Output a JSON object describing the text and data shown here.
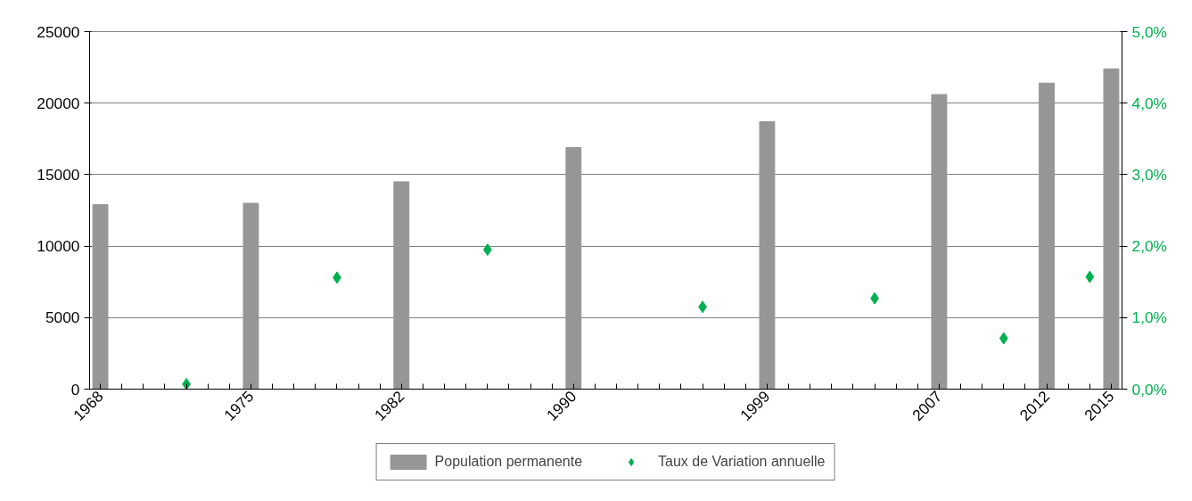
{
  "chart_data": {
    "type": "bar",
    "x": [
      1968,
      1975,
      1982,
      1990,
      1999,
      2007,
      2012,
      2015
    ],
    "series": [
      {
        "name": "Population permanente",
        "color": "#969696",
        "values": [
          12900,
          13000,
          14500,
          16900,
          18700,
          20600,
          21400,
          22400
        ]
      },
      {
        "name": "Taux de Variation annuelle",
        "type": "scatter",
        "axis": "y2",
        "color": "#00b050",
        "marker": "diamond",
        "x": [
          1972,
          1979,
          1986,
          1996,
          2004,
          2010,
          2014
        ],
        "values": [
          0.07,
          1.56,
          1.95,
          1.15,
          1.27,
          0.71,
          1.57
        ]
      }
    ],
    "xlim": [
      1967.5,
      2015.5
    ],
    "xticks": [
      1968,
      {
        "value": 1969,
        "label": null
      },
      {
        "value": 1970,
        "label": null
      },
      {
        "value": 1971,
        "label": null
      },
      {
        "value": 1972,
        "label": null
      },
      {
        "value": 1973,
        "label": null
      },
      {
        "value": 1974,
        "label": null
      },
      1975,
      {
        "value": 1976,
        "label": null
      },
      {
        "value": 1977,
        "label": null
      },
      {
        "value": 1978,
        "label": null
      },
      {
        "value": 1979,
        "label": null
      },
      {
        "value": 1980,
        "label": null
      },
      {
        "value": 1981,
        "label": null
      },
      1982,
      {
        "value": 1983,
        "label": null
      },
      {
        "value": 1984,
        "label": null
      },
      {
        "value": 1985,
        "label": null
      },
      {
        "value": 1986,
        "label": null
      },
      {
        "value": 1987,
        "label": null
      },
      {
        "value": 1988,
        "label": null
      },
      {
        "value": 1989,
        "label": null
      },
      1990,
      {
        "value": 1991,
        "label": null
      },
      {
        "value": 1992,
        "label": null
      },
      {
        "value": 1993,
        "label": null
      },
      {
        "value": 1994,
        "label": null
      },
      {
        "value": 1995,
        "label": null
      },
      {
        "value": 1996,
        "label": null
      },
      {
        "value": 1997,
        "label": null
      },
      {
        "value": 1998,
        "label": null
      },
      1999,
      {
        "value": 2000,
        "label": null
      },
      {
        "value": 2001,
        "label": null
      },
      {
        "value": 2002,
        "label": null
      },
      {
        "value": 2003,
        "label": null
      },
      {
        "value": 2004,
        "label": null
      },
      {
        "value": 2005,
        "label": null
      },
      {
        "value": 2006,
        "label": null
      },
      2007,
      {
        "value": 2008,
        "label": null
      },
      {
        "value": 2009,
        "label": null
      },
      {
        "value": 2010,
        "label": null
      },
      {
        "value": 2011,
        "label": null
      },
      2012,
      {
        "value": 2013,
        "label": null
      },
      {
        "value": 2014,
        "label": null
      },
      2015
    ],
    "ylim": [
      0,
      25000
    ],
    "yticks": [
      0,
      5000,
      10000,
      15000,
      20000,
      25000
    ],
    "y2lim": [
      0,
      5
    ],
    "y2ticks": [
      {
        "value": 0,
        "label": "0,0%"
      },
      {
        "value": 1,
        "label": "1,0%"
      },
      {
        "value": 2,
        "label": "2,0%"
      },
      {
        "value": 3,
        "label": "3,0%"
      },
      {
        "value": 4,
        "label": "4,0%"
      },
      {
        "value": 5,
        "label": "5,0%"
      }
    ],
    "grid": "y",
    "legend": "bottom"
  }
}
